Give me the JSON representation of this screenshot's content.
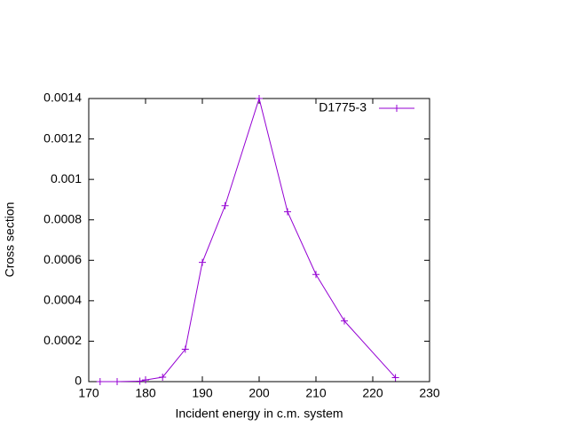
{
  "chart_data": {
    "type": "line",
    "xlabel": "Incident energy in c.m. system",
    "ylabel": "Cross section",
    "x": [
      172,
      175,
      179,
      180,
      183,
      187,
      190,
      194,
      200,
      205,
      210,
      215,
      224
    ],
    "series": [
      {
        "name": "D1775-3",
        "color": "#9400d3",
        "values": [
          0,
          0,
          2e-06,
          8e-06,
          2.2e-05,
          0.00016,
          0.00059,
          0.00087,
          0.0014,
          0.00084,
          0.00053,
          0.0003,
          2e-05
        ]
      }
    ],
    "xlim": [
      170,
      230
    ],
    "xticks": [
      170,
      180,
      190,
      200,
      210,
      220,
      230
    ],
    "ylim": [
      0,
      0.0014
    ],
    "yticks": [
      0,
      0.0002,
      0.0004,
      0.0006,
      0.0008,
      0.001,
      0.0012,
      0.0014
    ],
    "legend": "top-right"
  }
}
